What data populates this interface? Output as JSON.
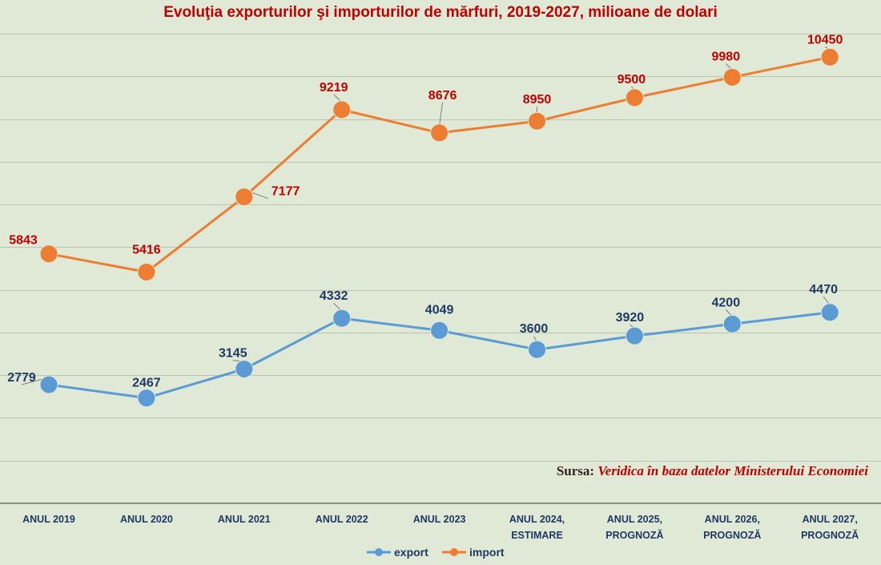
{
  "chart_data": {
    "type": "line",
    "title": "Evoluţia exporturilor şi importurilor de mărfuri, 2019-2027, milioane de dolari",
    "categories": [
      [
        "ANUL 2019"
      ],
      [
        "ANUL 2020"
      ],
      [
        "ANUL 2021"
      ],
      [
        "ANUL 2022"
      ],
      [
        "ANUL 2023"
      ],
      [
        "ANUL 2024,",
        "ESTIMARE"
      ],
      [
        "ANUL 2025,",
        "PROGNOZĂ"
      ],
      [
        "ANUL 2026,",
        "PROGNOZĂ"
      ],
      [
        "ANUL 2027,",
        "PROGNOZĂ"
      ]
    ],
    "series": [
      {
        "name": "export",
        "color": "#5b9bd5",
        "values": [
          2779,
          2467,
          3145,
          4332,
          4049,
          3600,
          3920,
          4200,
          4470
        ]
      },
      {
        "name": "import",
        "color": "#ed7d31",
        "values": [
          5843,
          5416,
          7177,
          9219,
          8676,
          8950,
          9500,
          9980,
          10450
        ]
      }
    ],
    "label_colors": {
      "export": "#1f3864",
      "import": "#c00000"
    },
    "ylim": [
      0,
      11000
    ],
    "grid": true,
    "legend": "bottom",
    "xlabel": "",
    "ylabel": ""
  },
  "source": {
    "prefix": "Sursa: ",
    "text": "Veridica în baza datelor Ministerului Economiei"
  }
}
